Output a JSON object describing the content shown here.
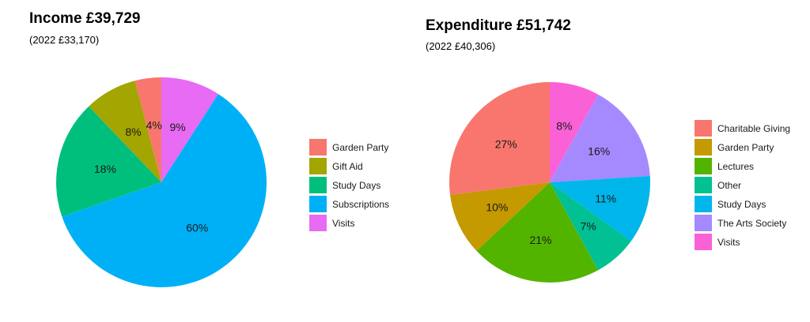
{
  "chart_data": [
    {
      "type": "pie",
      "title": "Income £39,729",
      "subtitle": "(2022 £33,170)",
      "categories": [
        "Garden Party",
        "Gift Aid",
        "Study Days",
        "Subscriptions",
        "Visits"
      ],
      "values": [
        4,
        8,
        18,
        60,
        9
      ],
      "value_labels": [
        "4%",
        "8%",
        "18%",
        "60%",
        "9%"
      ],
      "colors": [
        "#F8766D",
        "#A3A500",
        "#00BF7D",
        "#00B0F6",
        "#E76BF3"
      ],
      "legend_position": "right"
    },
    {
      "type": "pie",
      "title": "Expenditure £51,742",
      "subtitle": "(2022 £40,306)",
      "categories": [
        "Charitable Giving",
        "Garden Party",
        "Lectures",
        "Other",
        "Study Days",
        "The Arts Society",
        "Visits"
      ],
      "values": [
        27,
        10,
        21,
        7,
        11,
        16,
        8
      ],
      "value_labels": [
        "27%",
        "10%",
        "21%",
        "7%",
        "11%",
        "16%",
        "8%"
      ],
      "colors": [
        "#F8766D",
        "#C49A00",
        "#53B400",
        "#00C094",
        "#00B6EB",
        "#A58AFF",
        "#FB61D7"
      ],
      "legend_position": "right"
    }
  ]
}
